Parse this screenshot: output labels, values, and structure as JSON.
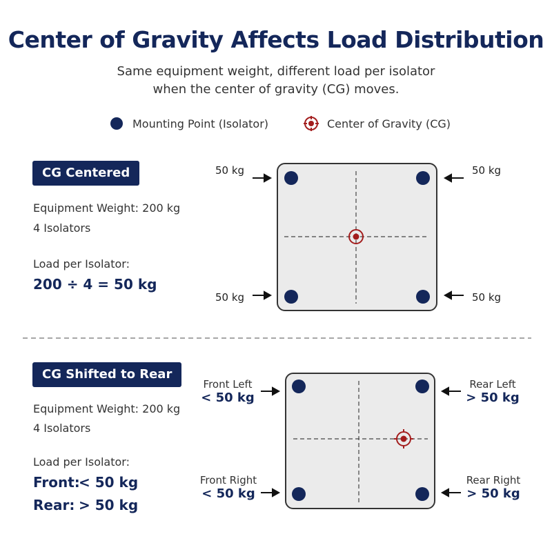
{
  "title": "Center of Gravity Affects Load Distribution",
  "subtitle": [
    "Same equipment weight, different load per isolator",
    "when the center of gravity (CG) moves."
  ],
  "legend": {
    "mounting": "Mounting Point (Isolator)",
    "cg": "Center of Gravity (CG)"
  },
  "colors": {
    "navy": "#14275a",
    "red": "#a31d1d",
    "plate": "#ebebeb"
  },
  "centered": {
    "badge": "CG Centered",
    "weight": "Equipment Weight: 200 kg",
    "isolators": "4 Isolators",
    "load_label": "Load per Isolator:",
    "formula": "200 ÷ 4 = 50 kg",
    "loads": {
      "top_left": "50 kg",
      "top_right": "50 kg",
      "bottom_left": "50 kg",
      "bottom_right": "50 kg"
    }
  },
  "shifted": {
    "badge": "CG Shifted to Rear",
    "weight": "Equipment Weight: 200 kg",
    "isolators": "4 Isolators",
    "load_label": "Load per Isolator:",
    "front_label": "Front:",
    "front_value": "< 50 kg",
    "rear_label": "Rear:",
    "rear_value": "> 50 kg",
    "corners": {
      "front_left": {
        "name": "Front Left",
        "value": "< 50 kg"
      },
      "rear_left": {
        "name": "Rear Left",
        "value": "> 50 kg"
      },
      "front_right": {
        "name": "Front Right",
        "value": "< 50 kg"
      },
      "rear_right": {
        "name": "Rear Right",
        "value": "> 50 kg"
      }
    }
  }
}
